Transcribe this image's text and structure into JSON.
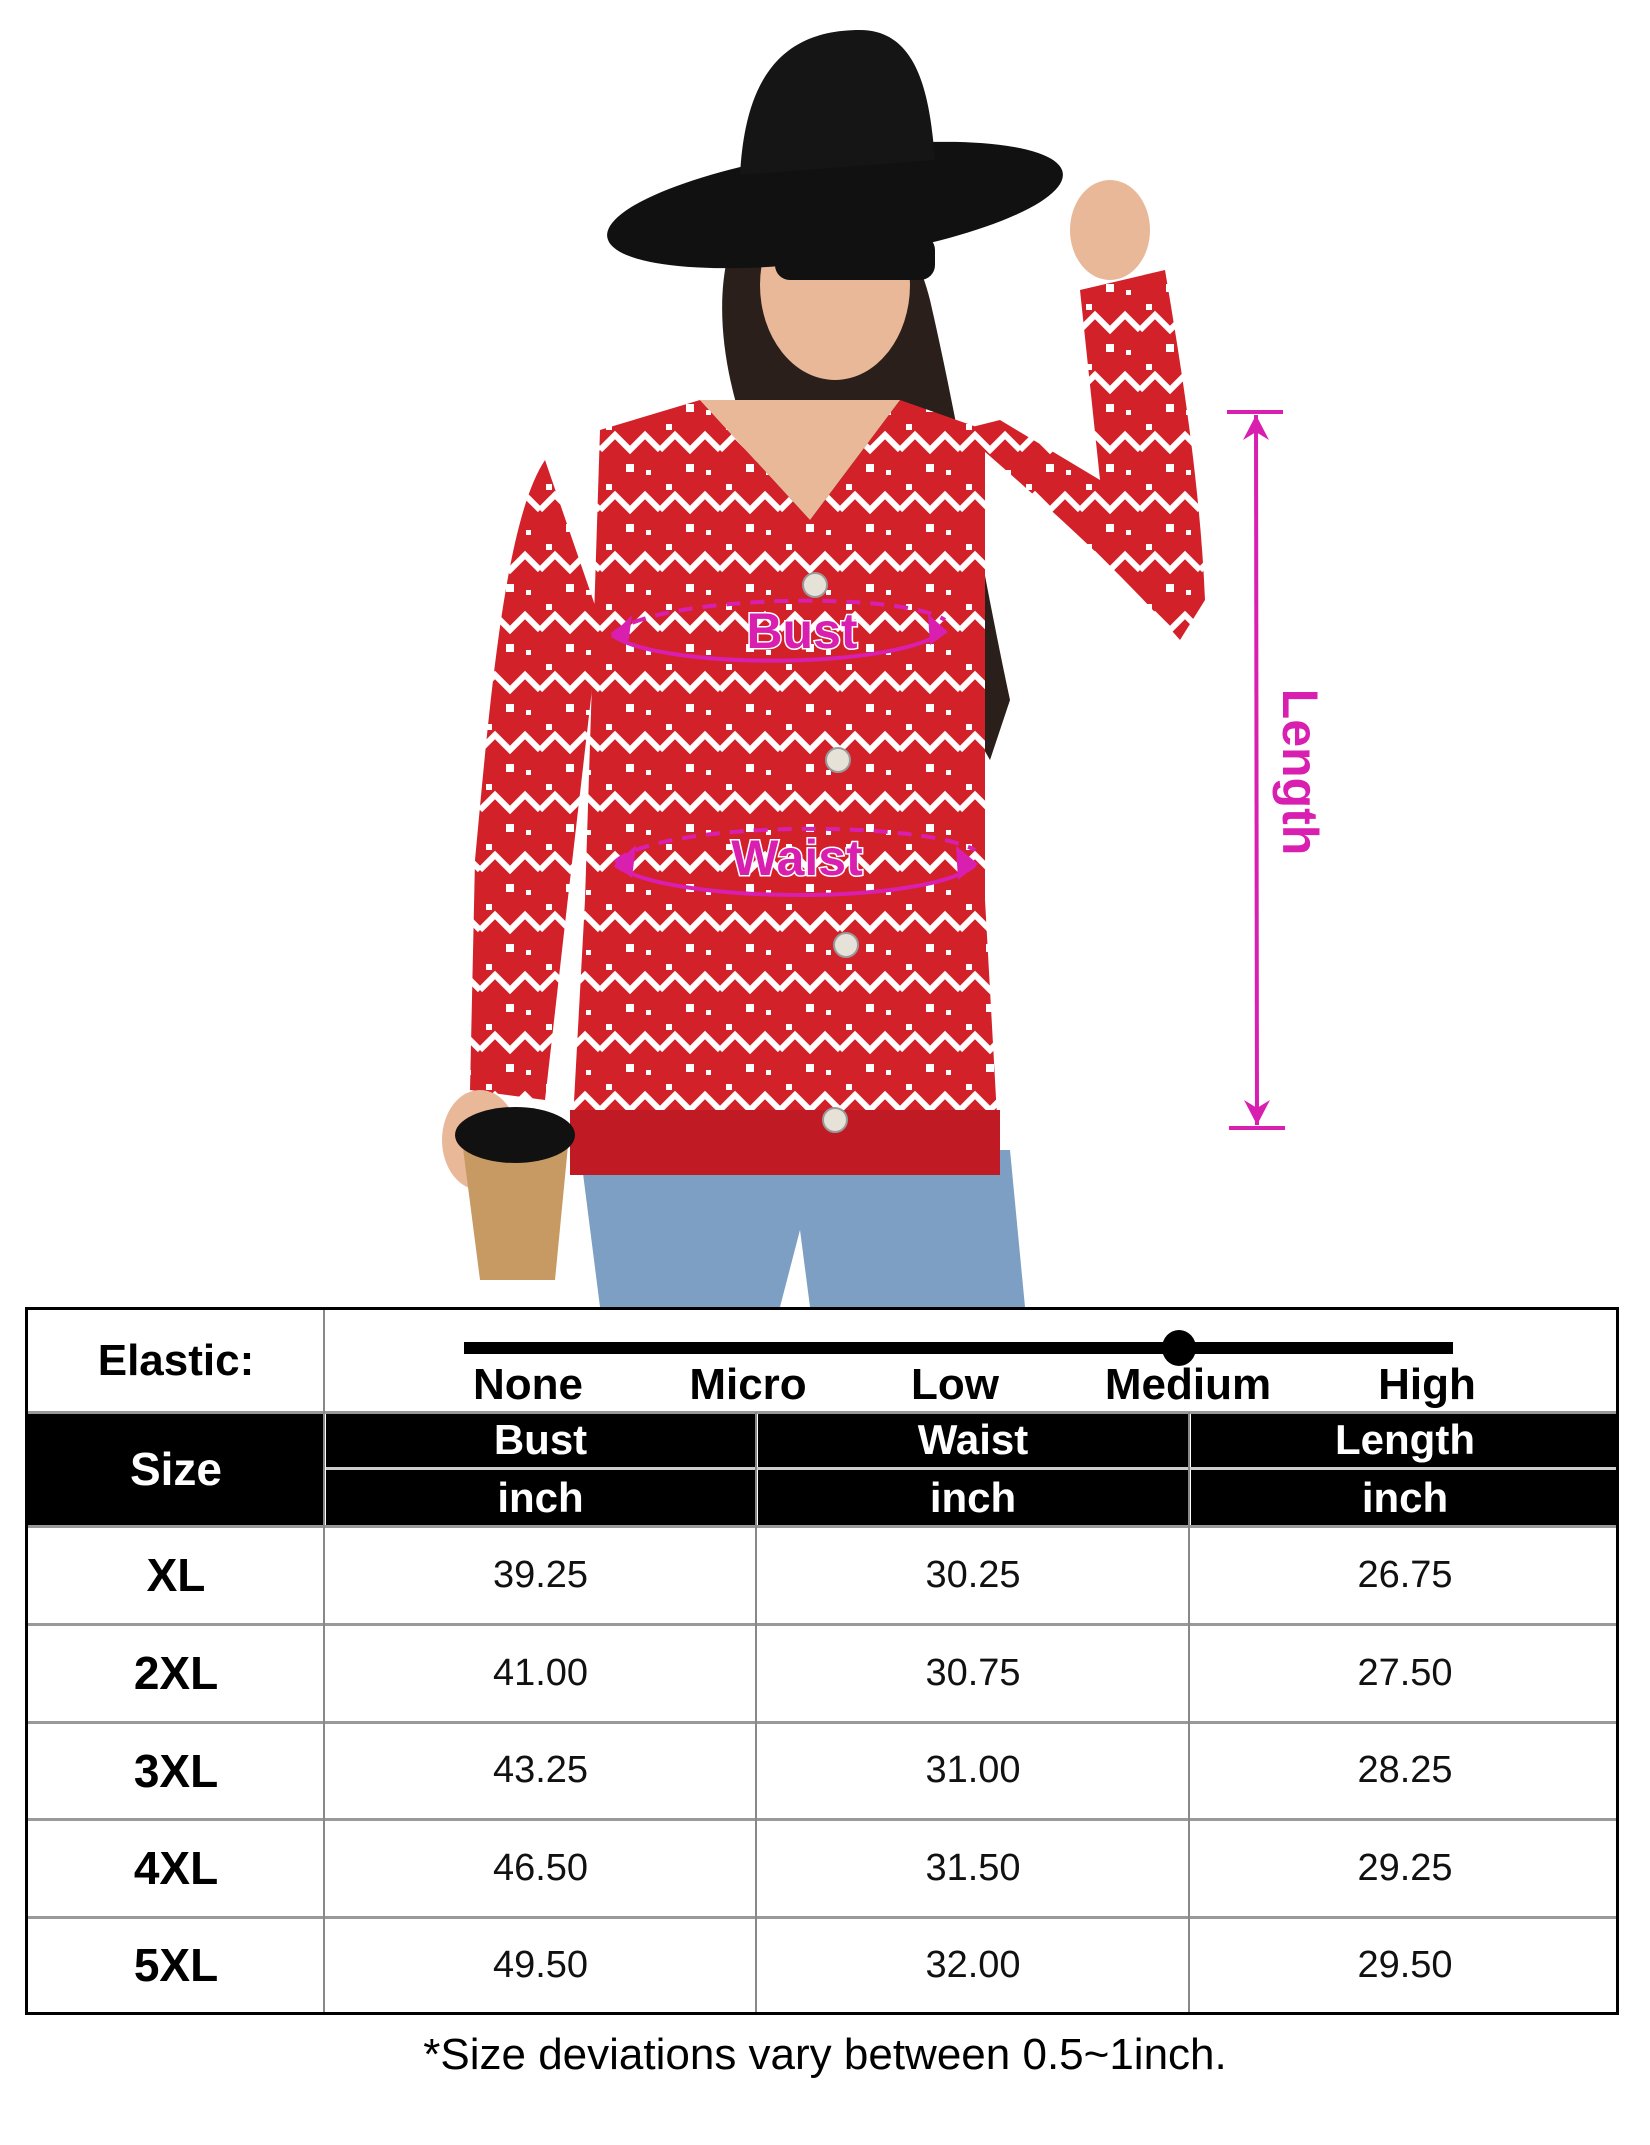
{
  "measure_labels": {
    "bust": "Bust",
    "waist": "Waist",
    "length": "Length"
  },
  "colors": {
    "measure": "#d81fb0",
    "sweater": "#d3212a",
    "header_bg": "#000000"
  },
  "elastic": {
    "label": "Elastic:",
    "levels": [
      "None",
      "Micro",
      "Low",
      "Medium",
      "High"
    ],
    "selected": "Medium"
  },
  "table": {
    "size_header": "Size",
    "columns": [
      {
        "name": "Bust",
        "unit": "inch"
      },
      {
        "name": "Waist",
        "unit": "inch"
      },
      {
        "name": "Length",
        "unit": "inch"
      }
    ],
    "rows": [
      {
        "size": "XL",
        "values": [
          "39.25",
          "30.25",
          "26.75"
        ]
      },
      {
        "size": "2XL",
        "values": [
          "41.00",
          "30.75",
          "27.50"
        ]
      },
      {
        "size": "3XL",
        "values": [
          "43.25",
          "31.00",
          "28.25"
        ]
      },
      {
        "size": "4XL",
        "values": [
          "46.50",
          "31.50",
          "29.25"
        ]
      },
      {
        "size": "5XL",
        "values": [
          "49.50",
          "32.00",
          "29.50"
        ]
      }
    ]
  },
  "footnote": "*Size deviations vary between 0.5~1inch."
}
